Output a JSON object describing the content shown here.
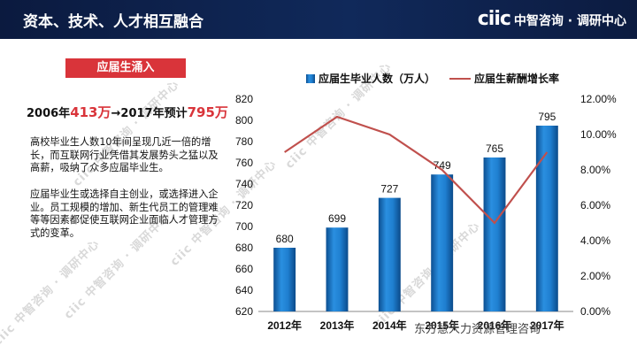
{
  "header": {
    "title": "资本、技术、人才相互融合",
    "logo_mark": "ciic",
    "logo_text": "中智咨询 · 调研中心"
  },
  "panel": {
    "badge": "应届生涌入",
    "headline_pre": "2006年",
    "headline_v1": "413万",
    "headline_mid": "→2017年预计",
    "headline_v2": "795万",
    "para1": "高校毕业生人数10年间呈现几近一倍的增长，而互联网行业凭借其发展势头之猛以及高薪，吸纳了众多应届毕业生。",
    "para2": "应届毕业生或选择自主创业，或选择进入企业。员工规模的增加、新生代员工的管理难等等因素都促使互联网企业面临人才管理方式的变革。"
  },
  "watermark_text": "ciic 中智咨询 · 调研中心",
  "footer_watermark": "东方慧人力资源管理咨询",
  "colors": {
    "header_bg": "#10295a",
    "accent_red": "#d9343a",
    "bar_blue": "#1f7fd0",
    "line_red": "#c0504d"
  },
  "chart_data": {
    "type": "bar+line",
    "categories": [
      "2012年",
      "2013年",
      "2014年",
      "2015年",
      "2016年",
      "2017年"
    ],
    "series": [
      {
        "name": "应届生毕业人数（万人）",
        "type": "bar",
        "axis": "left",
        "values": [
          680,
          699,
          727,
          749,
          765,
          795
        ]
      },
      {
        "name": "应届生薪酬增长率",
        "type": "line",
        "axis": "right",
        "values": [
          0.09,
          0.11,
          0.1,
          0.08,
          0.05,
          0.09
        ]
      }
    ],
    "ylim_left": [
      620,
      820
    ],
    "yticks_left": [
      "620",
      "640",
      "660",
      "680",
      "700",
      "720",
      "740",
      "760",
      "780",
      "800",
      "820"
    ],
    "ylim_right": [
      0,
      0.12
    ],
    "yticks_right": [
      "0.00%",
      "2.00%",
      "4.00%",
      "6.00%",
      "8.00%",
      "10.00%",
      "12.00%"
    ],
    "legend_position": "top"
  }
}
